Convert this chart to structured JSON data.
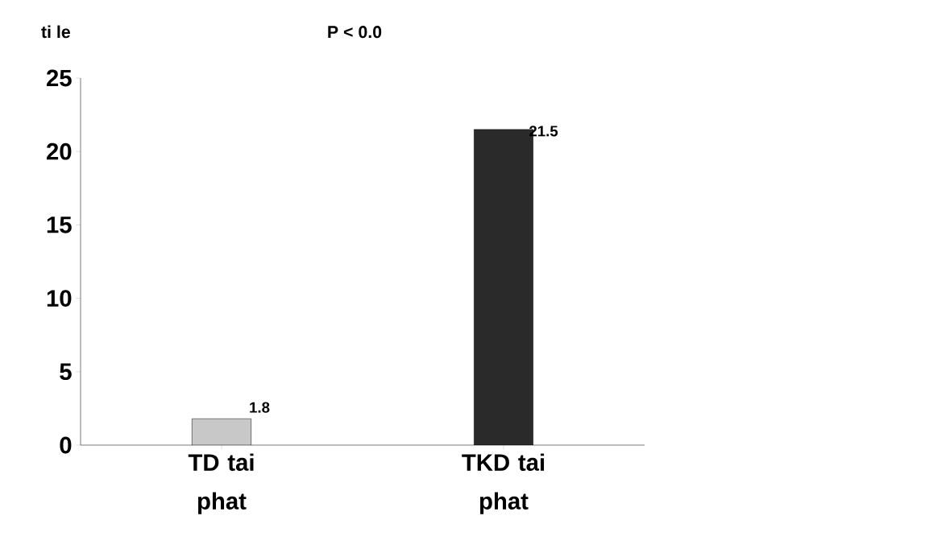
{
  "chart_data": {
    "type": "bar",
    "title": "P < 0.0",
    "ylabel": "ti le",
    "categories": [
      "TD tai phat",
      "TKD tai phat"
    ],
    "values": [
      1.8,
      21.5
    ],
    "colors": [
      "#c8c8c8",
      "#2a2a2a"
    ],
    "ylim": [
      0,
      25
    ],
    "yticks": [
      0,
      5,
      10,
      15,
      20,
      25
    ],
    "data_labels": true
  }
}
